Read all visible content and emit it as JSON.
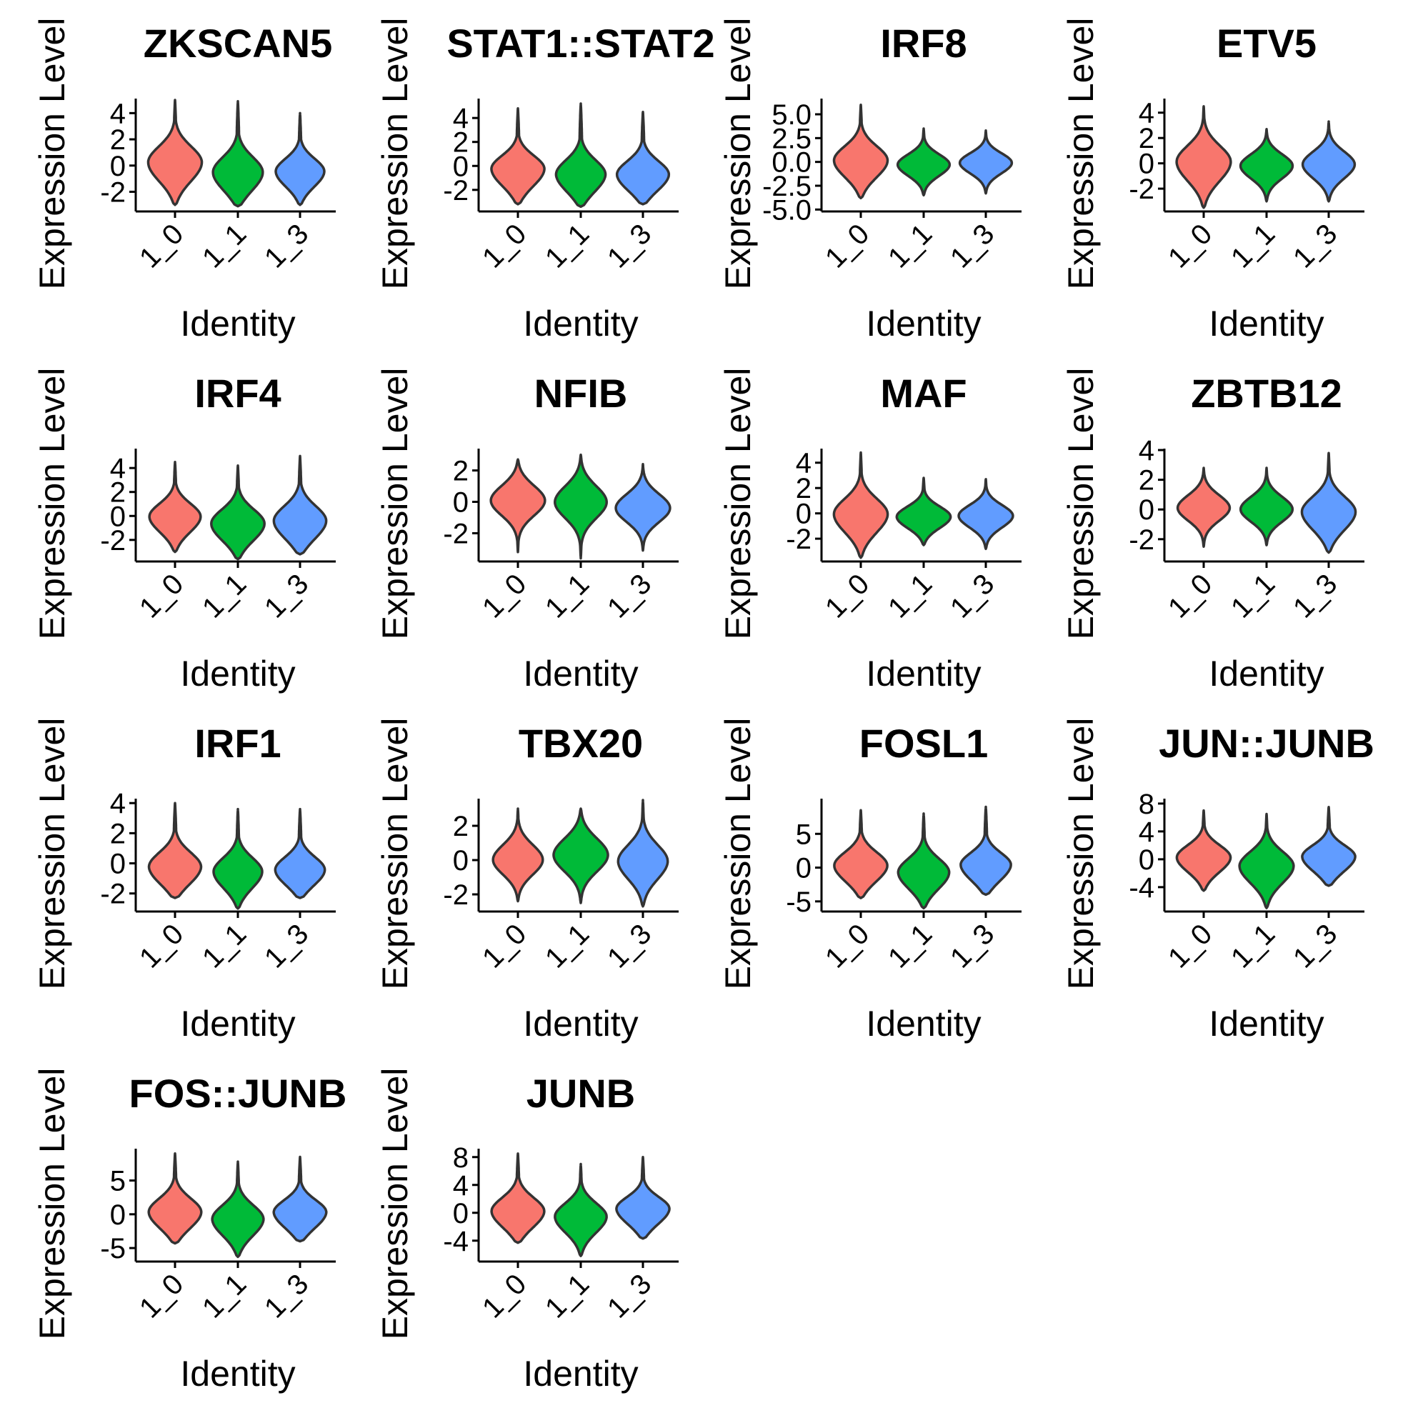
{
  "chart_data": [
    {
      "type": "violin",
      "title": "ZKSCAN5",
      "xlabel": "Identity",
      "ylabel": "Expression Level",
      "categories": [
        "1_0",
        "1_1",
        "1_3"
      ],
      "colors": [
        "#F8766D",
        "#00BA38",
        "#619CFF"
      ],
      "yticks": [
        4,
        2,
        0,
        -2
      ],
      "ylim": [
        -3.5,
        5
      ],
      "violins": [
        {
          "min": -3.0,
          "max": 5.0,
          "center": 0.2,
          "width": 0.48,
          "skew": -0.1
        },
        {
          "min": -3.1,
          "max": 4.9,
          "center": -0.6,
          "width": 0.46,
          "skew": -0.1
        },
        {
          "min": -3.0,
          "max": 4.0,
          "center": -0.5,
          "width": 0.44,
          "skew": -0.1
        }
      ]
    },
    {
      "type": "violin",
      "title": "STAT1::STAT2",
      "xlabel": "Identity",
      "ylabel": "Expression Level",
      "categories": [
        "1_0",
        "1_1",
        "1_3"
      ],
      "colors": [
        "#F8766D",
        "#00BA38",
        "#619CFF"
      ],
      "yticks": [
        4,
        2,
        0,
        -2
      ],
      "ylim": [
        -3.8,
        5.5
      ],
      "violins": [
        {
          "min": -3.2,
          "max": 4.8,
          "center": -0.3,
          "width": 0.46,
          "skew": -0.15
        },
        {
          "min": -3.4,
          "max": 5.2,
          "center": -0.8,
          "width": 0.44,
          "skew": -0.1
        },
        {
          "min": -3.2,
          "max": 4.5,
          "center": -0.8,
          "width": 0.46,
          "skew": -0.1
        }
      ]
    },
    {
      "type": "violin",
      "title": "IRF8",
      "xlabel": "Identity",
      "ylabel": "Expression Level",
      "categories": [
        "1_0",
        "1_1",
        "1_3"
      ],
      "colors": [
        "#F8766D",
        "#00BA38",
        "#619CFF"
      ],
      "yticks": [
        5.0,
        2.5,
        0.0,
        -2.5,
        -5.0
      ],
      "ytick_labels": [
        "5.0",
        "2.5",
        "0.0",
        "-2.5",
        "-5.0"
      ],
      "ylim": [
        -5.2,
        6.5
      ],
      "violins": [
        {
          "min": -3.8,
          "max": 6.0,
          "center": 0.1,
          "width": 0.48,
          "skew": -0.1
        },
        {
          "min": -3.5,
          "max": 3.5,
          "center": -0.3,
          "width": 0.46,
          "skew": -0.05
        },
        {
          "min": -3.3,
          "max": 3.3,
          "center": -0.1,
          "width": 0.46,
          "skew": -0.05
        }
      ]
    },
    {
      "type": "violin",
      "title": "ETV5",
      "xlabel": "Identity",
      "ylabel": "Expression Level",
      "categories": [
        "1_0",
        "1_1",
        "1_3"
      ],
      "colors": [
        "#F8766D",
        "#00BA38",
        "#619CFF"
      ],
      "yticks": [
        4,
        2,
        0,
        -2
      ],
      "ylim": [
        -3.8,
        5
      ],
      "violins": [
        {
          "min": -3.5,
          "max": 4.5,
          "center": 0.1,
          "width": 0.5,
          "skew": -0.1
        },
        {
          "min": -3.0,
          "max": 2.7,
          "center": -0.2,
          "width": 0.48,
          "skew": -0.05
        },
        {
          "min": -3.0,
          "max": 3.3,
          "center": -0.1,
          "width": 0.48,
          "skew": -0.05
        }
      ]
    },
    {
      "type": "violin",
      "title": "IRF4",
      "xlabel": "Identity",
      "ylabel": "Expression Level",
      "categories": [
        "1_0",
        "1_1",
        "1_3"
      ],
      "colors": [
        "#F8766D",
        "#00BA38",
        "#619CFF"
      ],
      "yticks": [
        4,
        2,
        0,
        -2
      ],
      "ylim": [
        -3.8,
        5.5
      ],
      "violins": [
        {
          "min": -3.0,
          "max": 4.5,
          "center": -0.1,
          "width": 0.46,
          "skew": -0.1
        },
        {
          "min": -3.6,
          "max": 4.2,
          "center": -0.7,
          "width": 0.48,
          "skew": -0.1
        },
        {
          "min": -3.2,
          "max": 5.0,
          "center": -0.5,
          "width": 0.48,
          "skew": -0.1
        }
      ]
    },
    {
      "type": "violin",
      "title": "NFIB",
      "xlabel": "Identity",
      "ylabel": "Expression Level",
      "categories": [
        "1_0",
        "1_1",
        "1_3"
      ],
      "colors": [
        "#F8766D",
        "#00BA38",
        "#619CFF"
      ],
      "yticks": [
        2,
        0,
        -2
      ],
      "ylim": [
        -3.8,
        3.3
      ],
      "violins": [
        {
          "min": -3.2,
          "max": 2.7,
          "center": 0.1,
          "width": 0.46,
          "skew": 0.0
        },
        {
          "min": -3.6,
          "max": 3.0,
          "center": 0.0,
          "width": 0.44,
          "skew": 0.0
        },
        {
          "min": -3.1,
          "max": 2.4,
          "center": -0.4,
          "width": 0.46,
          "skew": 0.0
        }
      ]
    },
    {
      "type": "violin",
      "title": "MAF",
      "xlabel": "Identity",
      "ylabel": "Expression Level",
      "categories": [
        "1_0",
        "1_1",
        "1_3"
      ],
      "colors": [
        "#F8766D",
        "#00BA38",
        "#619CFF"
      ],
      "yticks": [
        4,
        2,
        0,
        -2
      ],
      "ylim": [
        -3.8,
        5
      ],
      "violins": [
        {
          "min": -3.5,
          "max": 4.8,
          "center": -0.1,
          "width": 0.46,
          "skew": -0.1
        },
        {
          "min": -2.5,
          "max": 2.8,
          "center": -0.3,
          "width": 0.46,
          "skew": -0.05
        },
        {
          "min": -2.8,
          "max": 2.7,
          "center": -0.2,
          "width": 0.46,
          "skew": -0.05
        }
      ]
    },
    {
      "type": "violin",
      "title": "ZBTB12",
      "xlabel": "Identity",
      "ylabel": "Expression Level",
      "categories": [
        "1_0",
        "1_1",
        "1_3"
      ],
      "colors": [
        "#F8766D",
        "#00BA38",
        "#619CFF"
      ],
      "yticks": [
        4,
        2,
        0,
        -2
      ],
      "ylim": [
        -3.5,
        4
      ],
      "violins": [
        {
          "min": -2.5,
          "max": 2.8,
          "center": 0.1,
          "width": 0.46,
          "skew": 0.0
        },
        {
          "min": -2.4,
          "max": 2.8,
          "center": 0.0,
          "width": 0.46,
          "skew": 0.0
        },
        {
          "min": -2.9,
          "max": 3.8,
          "center": -0.2,
          "width": 0.48,
          "skew": -0.1
        }
      ]
    },
    {
      "type": "violin",
      "title": "IRF1",
      "xlabel": "Identity",
      "ylabel": "Expression Level",
      "categories": [
        "1_0",
        "1_1",
        "1_3"
      ],
      "colors": [
        "#F8766D",
        "#00BA38",
        "#619CFF"
      ],
      "yticks": [
        4,
        2,
        0,
        -2
      ],
      "ylim": [
        -3.2,
        4.2
      ],
      "violins": [
        {
          "min": -2.3,
          "max": 4.0,
          "center": -0.3,
          "width": 0.48,
          "skew": -0.1
        },
        {
          "min": -3.0,
          "max": 3.6,
          "center": -0.6,
          "width": 0.44,
          "skew": -0.1
        },
        {
          "min": -2.3,
          "max": 3.6,
          "center": -0.5,
          "width": 0.46,
          "skew": -0.1
        }
      ]
    },
    {
      "type": "violin",
      "title": "TBX20",
      "xlabel": "Identity",
      "ylabel": "Expression Level",
      "categories": [
        "1_0",
        "1_1",
        "1_3"
      ],
      "colors": [
        "#F8766D",
        "#00BA38",
        "#619CFF"
      ],
      "yticks": [
        2,
        0,
        -2
      ],
      "ylim": [
        -3,
        3.5
      ],
      "violins": [
        {
          "min": -2.4,
          "max": 3.0,
          "center": 0.0,
          "width": 0.46,
          "skew": 0.0
        },
        {
          "min": -2.5,
          "max": 3.0,
          "center": 0.3,
          "width": 0.5,
          "skew": 0.0
        },
        {
          "min": -2.7,
          "max": 3.5,
          "center": -0.1,
          "width": 0.46,
          "skew": -0.05
        }
      ]
    },
    {
      "type": "violin",
      "title": "FOSL1",
      "xlabel": "Identity",
      "ylabel": "Expression Level",
      "categories": [
        "1_0",
        "1_1",
        "1_3"
      ],
      "colors": [
        "#F8766D",
        "#00BA38",
        "#619CFF"
      ],
      "yticks": [
        5,
        0,
        -5
      ],
      "ylim": [
        -6.5,
        10
      ],
      "violins": [
        {
          "min": -4.5,
          "max": 8.5,
          "center": 0.2,
          "width": 0.48,
          "skew": -0.1
        },
        {
          "min": -6.0,
          "max": 8.0,
          "center": -0.8,
          "width": 0.46,
          "skew": -0.1
        },
        {
          "min": -4.0,
          "max": 9.0,
          "center": 0.3,
          "width": 0.46,
          "skew": -0.15
        }
      ]
    },
    {
      "type": "violin",
      "title": "JUN::JUNB",
      "xlabel": "Identity",
      "ylabel": "Expression Level",
      "categories": [
        "1_0",
        "1_1",
        "1_3"
      ],
      "colors": [
        "#F8766D",
        "#00BA38",
        "#619CFF"
      ],
      "yticks": [
        8,
        4,
        0,
        -4
      ],
      "ylim": [
        -7.5,
        8.5
      ],
      "violins": [
        {
          "min": -4.5,
          "max": 7.0,
          "center": 0.2,
          "width": 0.48,
          "skew": -0.1
        },
        {
          "min": -7.0,
          "max": 6.5,
          "center": -1.0,
          "width": 0.48,
          "skew": -0.1
        },
        {
          "min": -3.8,
          "max": 7.5,
          "center": 0.3,
          "width": 0.48,
          "skew": -0.15
        }
      ]
    },
    {
      "type": "violin",
      "title": "FOS::JUNB",
      "xlabel": "Identity",
      "ylabel": "Expression Level",
      "categories": [
        "1_0",
        "1_1",
        "1_3"
      ],
      "colors": [
        "#F8766D",
        "#00BA38",
        "#619CFF"
      ],
      "yticks": [
        5,
        0,
        -5
      ],
      "ylim": [
        -7,
        9.5
      ],
      "violins": [
        {
          "min": -4.3,
          "max": 9.0,
          "center": 0.2,
          "width": 0.48,
          "skew": -0.1
        },
        {
          "min": -6.3,
          "max": 7.8,
          "center": -0.8,
          "width": 0.46,
          "skew": -0.1
        },
        {
          "min": -4.0,
          "max": 8.5,
          "center": 0.2,
          "width": 0.48,
          "skew": -0.15
        }
      ]
    },
    {
      "type": "violin",
      "title": "JUNB",
      "xlabel": "Identity",
      "ylabel": "Expression Level",
      "categories": [
        "1_0",
        "1_1",
        "1_3"
      ],
      "colors": [
        "#F8766D",
        "#00BA38",
        "#619CFF"
      ],
      "yticks": [
        8,
        4,
        0,
        -4
      ],
      "ylim": [
        -7,
        9
      ],
      "violins": [
        {
          "min": -4.3,
          "max": 8.5,
          "center": 0.1,
          "width": 0.48,
          "skew": -0.1
        },
        {
          "min": -6.2,
          "max": 7.0,
          "center": -0.6,
          "width": 0.46,
          "skew": -0.1
        },
        {
          "min": -3.7,
          "max": 8.0,
          "center": 0.5,
          "width": 0.48,
          "skew": -0.15
        }
      ]
    }
  ]
}
